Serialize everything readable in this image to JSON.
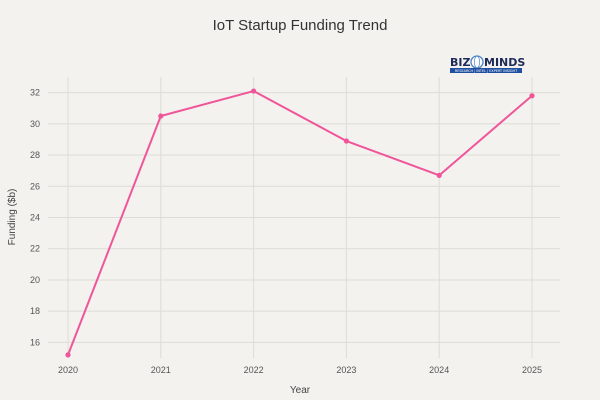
{
  "logo": {
    "text_left": "BIZ",
    "text_right": "MINDS",
    "tagline": "RESEARCH | INTEL | EXPERT INSIGHT"
  },
  "chart_data": {
    "type": "line",
    "title": "IoT Startup Funding Trend",
    "xlabel": "Year",
    "ylabel": "Funding ($b)",
    "x": [
      2020,
      2021,
      2022,
      2023,
      2024,
      2025
    ],
    "series": [
      {
        "values": [
          15.2,
          30.5,
          32.1,
          28.9,
          26.7,
          31.8
        ],
        "color": "#f0559a"
      }
    ],
    "x_ticks": [
      "2020",
      "2021",
      "2022",
      "2023",
      "2024",
      "2025"
    ],
    "y_ticks": [
      "16",
      "18",
      "20",
      "22",
      "24",
      "26",
      "28",
      "30",
      "32"
    ],
    "ylim": [
      15,
      33
    ],
    "grid": true,
    "colors": {
      "grid": "#dddcd7",
      "axis_text": "#555555"
    }
  }
}
